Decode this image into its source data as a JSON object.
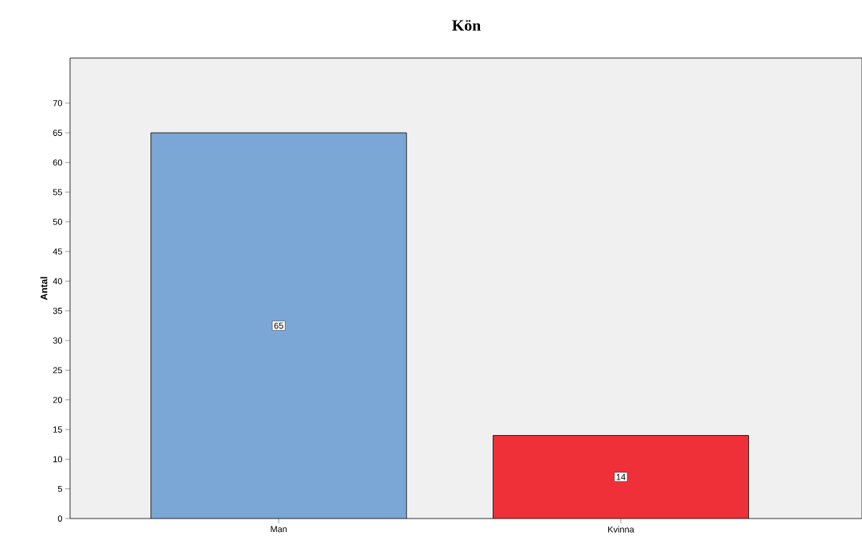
{
  "chart_data": {
    "type": "bar",
    "title": "Kön",
    "ylabel": "Antal",
    "categories": [
      "Man",
      "Kvinna"
    ],
    "values": [
      65,
      14
    ],
    "colors": [
      "#7ba7d6",
      "#f03038"
    ],
    "ylim": [
      0,
      77.6
    ],
    "yticks": [
      0,
      5,
      10,
      15,
      20,
      25,
      30,
      35,
      40,
      45,
      50,
      55,
      60,
      65,
      70
    ],
    "data_labels": true,
    "grid": false
  }
}
